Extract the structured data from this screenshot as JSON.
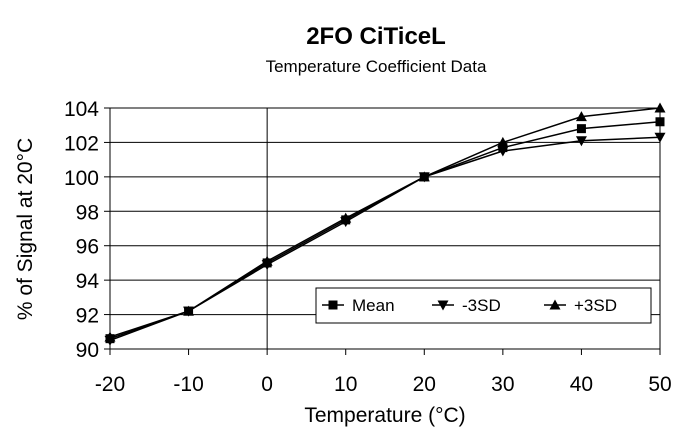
{
  "chart_data": {
    "type": "line",
    "title": "2FO CiTiceL",
    "subtitle": "Temperature Coefficient Data",
    "xlabel": "Temperature (°C)",
    "ylabel": "% of Signal at 20°C",
    "xlim": [
      -20,
      50
    ],
    "ylim": [
      90,
      104
    ],
    "xticks": [
      -20,
      -10,
      0,
      10,
      20,
      30,
      40,
      50
    ],
    "yticks": [
      90,
      92,
      94,
      96,
      98,
      100,
      102,
      104
    ],
    "grid": true,
    "legend_position": "bottom-right",
    "x": [
      -20,
      -10,
      0,
      10,
      20,
      30,
      40,
      50
    ],
    "series": [
      {
        "name": "Mean",
        "marker": "square",
        "color": "#000000",
        "values": [
          90.6,
          92.2,
          95.0,
          97.5,
          100.0,
          101.7,
          102.8,
          103.2
        ]
      },
      {
        "name": "-3SD",
        "marker": "triangle-down",
        "color": "#000000",
        "values": [
          90.5,
          92.2,
          94.9,
          97.4,
          100.0,
          101.5,
          102.1,
          102.3
        ]
      },
      {
        "name": "+3SD",
        "marker": "triangle-up",
        "color": "#000000",
        "values": [
          90.7,
          92.2,
          95.1,
          97.6,
          100.0,
          102.0,
          103.5,
          104.0
        ]
      }
    ]
  }
}
